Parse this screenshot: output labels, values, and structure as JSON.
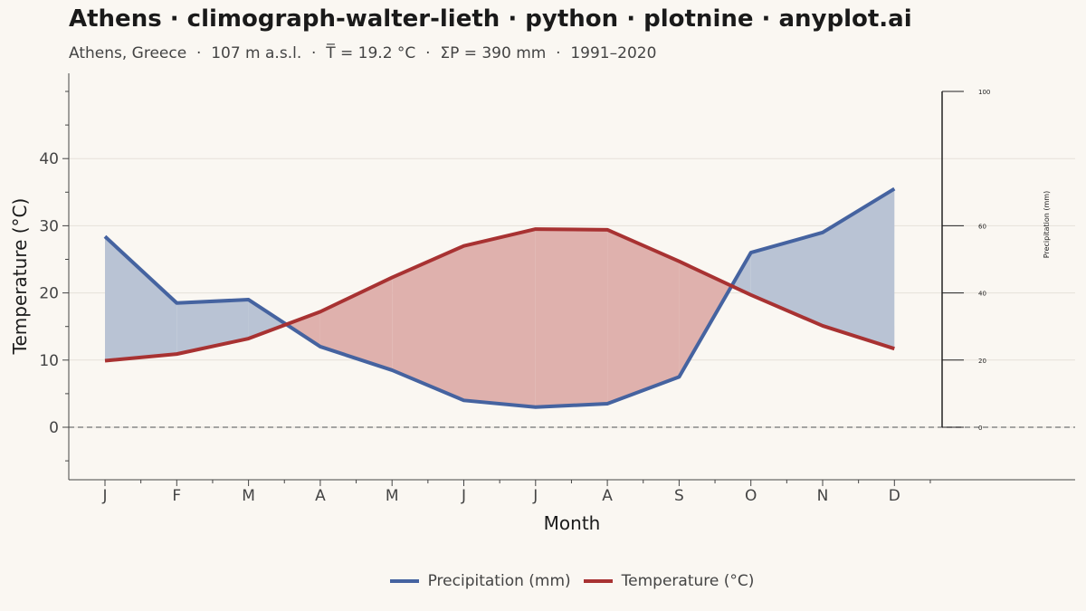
{
  "title": "Athens · climograph-walter-lieth · python · plotnine · anyplot.ai",
  "subtitle": "Athens, Greece  ·  107 m a.s.l.  ·  T̅ = 19.2 °C  ·  ΣP = 390 mm  ·  1991–2020",
  "colors": {
    "precip": "#4563a0",
    "temp": "#a83232",
    "precip_fill": "#b9c3d4",
    "temp_fill": "#dfb1ad",
    "background": "#faf7f2"
  },
  "chart_data": {
    "type": "line",
    "categories": [
      "J",
      "F",
      "M",
      "A",
      "M",
      "J",
      "J",
      "A",
      "S",
      "O",
      "N",
      "D"
    ],
    "xlabel": "Month",
    "ylabel": "Temperature (°C)",
    "y2label": "Precipitation (mm)",
    "ylim": [
      -8,
      53
    ],
    "y_ticks": [
      0,
      10,
      20,
      30,
      40
    ],
    "y2_ticks": [
      0,
      20,
      40,
      60,
      100
    ],
    "y2_scale": "precipitation = 2 × temperature",
    "grid": true,
    "zero_line": "dashed",
    "legend_position": "bottom",
    "series": [
      {
        "name": "Precipitation (mm)",
        "axis": "right",
        "values": [
          56.8,
          37.0,
          38.0,
          24.0,
          17.0,
          8.0,
          6.0,
          7.0,
          15.0,
          52.0,
          58.0,
          71.0
        ]
      },
      {
        "name": "Temperature (°C)",
        "axis": "left",
        "values": [
          9.9,
          10.9,
          13.2,
          17.2,
          22.3,
          27.0,
          29.5,
          29.4,
          24.7,
          19.7,
          15.1,
          11.7
        ]
      }
    ],
    "shading": [
      {
        "meaning": "humid period",
        "condition": "precipitation above temperature",
        "color": "precip_fill"
      },
      {
        "meaning": "arid period",
        "condition": "temperature above precipitation",
        "color": "temp_fill"
      }
    ]
  }
}
